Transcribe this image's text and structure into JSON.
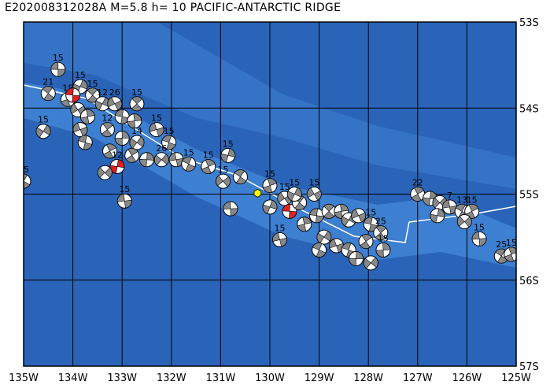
{
  "title": "E202008312028A  M=5.8  h= 10  PACIFIC-ANTARCTIC RIDGE",
  "colors": {
    "ocean_deep": "#2a64b8",
    "ocean_mid": "#3d7fd0",
    "ocean_shallow": "#6a9ee0",
    "grid": "#000000",
    "plate_boundary": "#ffffff",
    "event_marker": "#ffff00",
    "mech_recent": "#e02020",
    "mech_fill": "#888888"
  },
  "axes": {
    "lon_labels": [
      "135W",
      "134W",
      "133W",
      "132W",
      "131W",
      "130W",
      "129W",
      "128W",
      "127W",
      "126W",
      "125W"
    ],
    "lat_labels": [
      "53S",
      "54S",
      "55S",
      "56S",
      "57S"
    ],
    "lon_range": [
      -135,
      -125
    ],
    "lat_range": [
      -57,
      -53
    ]
  },
  "event": {
    "lon": -130.25,
    "lat": -54.99,
    "marker": "yellow-hexagon-icon"
  },
  "mechanisms": [
    {
      "lon": -134.3,
      "lat": -53.55,
      "label": "15"
    },
    {
      "lon": -134.5,
      "lat": -53.83,
      "label": "21"
    },
    {
      "lon": -134.1,
      "lat": -53.9,
      "label": "15"
    },
    {
      "lon": -133.85,
      "lat": -53.75,
      "label": "15"
    },
    {
      "lon": -133.9,
      "lat": -54.02,
      "label": ""
    },
    {
      "lon": -134.0,
      "lat": -53.85,
      "label": "",
      "recent": true
    },
    {
      "lon": -133.6,
      "lat": -53.85,
      "label": "15"
    },
    {
      "lon": -133.7,
      "lat": -54.1,
      "label": ""
    },
    {
      "lon": -133.4,
      "lat": -53.95,
      "label": "12"
    },
    {
      "lon": -133.15,
      "lat": -53.95,
      "label": "26"
    },
    {
      "lon": -133.0,
      "lat": -54.1,
      "label": ""
    },
    {
      "lon": -132.7,
      "lat": -53.95,
      "label": "15"
    },
    {
      "lon": -132.75,
      "lat": -54.15,
      "label": ""
    },
    {
      "lon": -134.6,
      "lat": -54.27,
      "label": "15"
    },
    {
      "lon": -133.85,
      "lat": -54.25,
      "label": ""
    },
    {
      "lon": -133.75,
      "lat": -54.4,
      "label": ""
    },
    {
      "lon": -133.3,
      "lat": -54.25,
      "label": "12"
    },
    {
      "lon": -133.0,
      "lat": -54.35,
      "label": ""
    },
    {
      "lon": -132.7,
      "lat": -54.4,
      "label": "14"
    },
    {
      "lon": -132.3,
      "lat": -54.25,
      "label": "15"
    },
    {
      "lon": -132.05,
      "lat": -54.4,
      "label": "15"
    },
    {
      "lon": -132.8,
      "lat": -54.55,
      "label": ""
    },
    {
      "lon": -132.5,
      "lat": -54.6,
      "label": ""
    },
    {
      "lon": -132.2,
      "lat": -54.6,
      "label": "26"
    },
    {
      "lon": -131.9,
      "lat": -54.6,
      "label": ""
    },
    {
      "lon": -131.65,
      "lat": -54.65,
      "label": "15"
    },
    {
      "lon": -133.25,
      "lat": -54.5,
      "label": ""
    },
    {
      "lon": -133.1,
      "lat": -54.68,
      "label": "12",
      "recent": true
    },
    {
      "lon": -133.35,
      "lat": -54.75,
      "label": ""
    },
    {
      "lon": -132.95,
      "lat": -55.08,
      "label": "15"
    },
    {
      "lon": -135.0,
      "lat": -54.85,
      "label": "15"
    },
    {
      "lon": -131.25,
      "lat": -54.68,
      "label": "15"
    },
    {
      "lon": -130.85,
      "lat": -54.55,
      "label": "15"
    },
    {
      "lon": -130.95,
      "lat": -54.85,
      "label": "15"
    },
    {
      "lon": -130.8,
      "lat": -55.17,
      "label": ""
    },
    {
      "lon": -130.6,
      "lat": -54.8,
      "label": ""
    },
    {
      "lon": -130.0,
      "lat": -54.9,
      "label": "15"
    },
    {
      "lon": -130.0,
      "lat": -55.15,
      "label": ""
    },
    {
      "lon": -129.7,
      "lat": -55.05,
      "label": "15"
    },
    {
      "lon": -129.6,
      "lat": -55.2,
      "label": "",
      "recent": true
    },
    {
      "lon": -129.4,
      "lat": -55.1,
      "label": ""
    },
    {
      "lon": -129.3,
      "lat": -55.35,
      "label": ""
    },
    {
      "lon": -129.5,
      "lat": -55.0,
      "label": "15"
    },
    {
      "lon": -129.1,
      "lat": -55.0,
      "label": "15"
    },
    {
      "lon": -129.05,
      "lat": -55.25,
      "label": ""
    },
    {
      "lon": -128.8,
      "lat": -55.2,
      "label": ""
    },
    {
      "lon": -128.55,
      "lat": -55.2,
      "label": ""
    },
    {
      "lon": -128.4,
      "lat": -55.3,
      "label": ""
    },
    {
      "lon": -128.2,
      "lat": -55.25,
      "label": ""
    },
    {
      "lon": -127.95,
      "lat": -55.35,
      "label": "15"
    },
    {
      "lon": -127.75,
      "lat": -55.45,
      "label": "25"
    },
    {
      "lon": -127.7,
      "lat": -55.65,
      "label": "15"
    },
    {
      "lon": -128.9,
      "lat": -55.5,
      "label": ""
    },
    {
      "lon": -128.65,
      "lat": -55.6,
      "label": ""
    },
    {
      "lon": -128.4,
      "lat": -55.65,
      "label": ""
    },
    {
      "lon": -128.05,
      "lat": -55.55,
      "label": ""
    },
    {
      "lon": -128.25,
      "lat": -55.75,
      "label": ""
    },
    {
      "lon": -127.95,
      "lat": -55.8,
      "label": ""
    },
    {
      "lon": -129.8,
      "lat": -55.53,
      "label": "15"
    },
    {
      "lon": -129.0,
      "lat": -55.65,
      "label": ""
    },
    {
      "lon": -127.0,
      "lat": -55.0,
      "label": "22"
    },
    {
      "lon": -126.75,
      "lat": -55.05,
      "label": ""
    },
    {
      "lon": -126.55,
      "lat": -55.1,
      "label": ""
    },
    {
      "lon": -126.35,
      "lat": -55.15,
      "label": "7"
    },
    {
      "lon": -126.1,
      "lat": -55.2,
      "label": "13"
    },
    {
      "lon": -125.9,
      "lat": -55.2,
      "label": "15"
    },
    {
      "lon": -126.6,
      "lat": -55.25,
      "label": ""
    },
    {
      "lon": -126.05,
      "lat": -55.32,
      "label": ""
    },
    {
      "lon": -125.75,
      "lat": -55.52,
      "label": "15"
    },
    {
      "lon": -125.3,
      "lat": -55.72,
      "label": "25"
    },
    {
      "lon": -125.1,
      "lat": -55.7,
      "label": "15"
    },
    {
      "lon": -124.85,
      "lat": -55.65,
      "label": "15"
    }
  ]
}
